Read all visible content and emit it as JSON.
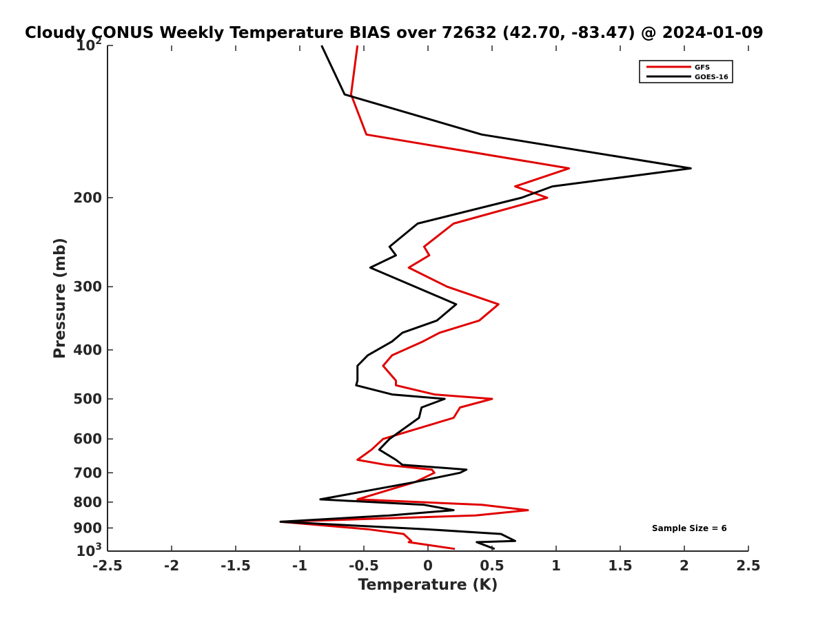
{
  "chart_data": {
    "type": "line",
    "title": "Cloudy CONUS Weekly Temperature BIAS over 72632 (42.70, -83.47) @ 2024-01-09",
    "xlabel": "Temperature (K)",
    "ylabel": "Pressure (mb)",
    "xlim": [
      -2.5,
      2.5
    ],
    "ylim": [
      100,
      1000
    ],
    "y_scale": "log",
    "y_reversed": true,
    "x_ticks": [
      -2.5,
      -2,
      -1.5,
      -1,
      -0.5,
      0,
      0.5,
      1,
      1.5,
      2,
      2.5
    ],
    "x_tick_labels": [
      "-2.5",
      "-2",
      "-1.5",
      "-1",
      "-0.5",
      "0",
      "0.5",
      "1",
      "1.5",
      "2",
      "2.5"
    ],
    "y_ticks": [
      100,
      200,
      300,
      400,
      500,
      600,
      700,
      800,
      900,
      1000
    ],
    "y_tick_labels": [
      {
        "base": "10",
        "exp": "2"
      },
      {
        "base": "200",
        "exp": ""
      },
      {
        "base": "300",
        "exp": ""
      },
      {
        "base": "400",
        "exp": ""
      },
      {
        "base": "500",
        "exp": ""
      },
      {
        "base": "600",
        "exp": ""
      },
      {
        "base": "700",
        "exp": ""
      },
      {
        "base": "800",
        "exp": ""
      },
      {
        "base": "900",
        "exp": ""
      },
      {
        "base": "10",
        "exp": "3"
      }
    ],
    "grid": false,
    "legend_position": "top-right",
    "series": [
      {
        "name": "GFS",
        "color": "#e00000",
        "points": [
          [
            -0.55,
            100
          ],
          [
            -0.6,
            125
          ],
          [
            -0.48,
            150
          ],
          [
            1.1,
            175
          ],
          [
            0.68,
            190
          ],
          [
            0.93,
            200
          ],
          [
            0.2,
            225
          ],
          [
            -0.03,
            250
          ],
          [
            0.01,
            260
          ],
          [
            -0.15,
            275
          ],
          [
            0.15,
            300
          ],
          [
            0.55,
            325
          ],
          [
            0.4,
            350
          ],
          [
            0.09,
            370
          ],
          [
            -0.04,
            385
          ],
          [
            -0.28,
            410
          ],
          [
            -0.35,
            430
          ],
          [
            -0.25,
            460
          ],
          [
            -0.25,
            470
          ],
          [
            0.05,
            490
          ],
          [
            0.5,
            500
          ],
          [
            0.25,
            520
          ],
          [
            0.2,
            545
          ],
          [
            -0.35,
            600
          ],
          [
            -0.44,
            630
          ],
          [
            -0.55,
            660
          ],
          [
            -0.33,
            675
          ],
          [
            0.03,
            690
          ],
          [
            0.05,
            700
          ],
          [
            -0.1,
            730
          ],
          [
            -0.55,
            790
          ],
          [
            0.42,
            810
          ],
          [
            0.78,
            830
          ],
          [
            0.37,
            850
          ],
          [
            -1.15,
            875
          ],
          [
            -0.47,
            905
          ],
          [
            -0.19,
            925
          ],
          [
            -0.13,
            955
          ],
          [
            -0.15,
            960
          ],
          [
            0.21,
            990
          ]
        ]
      },
      {
        "name": "GOES-16",
        "color": "#000000",
        "points": [
          [
            -0.83,
            100
          ],
          [
            -0.65,
            125
          ],
          [
            0.42,
            150
          ],
          [
            2.05,
            175
          ],
          [
            0.97,
            190
          ],
          [
            0.73,
            200
          ],
          [
            -0.08,
            225
          ],
          [
            -0.3,
            250
          ],
          [
            -0.25,
            260
          ],
          [
            -0.45,
            275
          ],
          [
            -0.1,
            300
          ],
          [
            0.22,
            325
          ],
          [
            0.07,
            350
          ],
          [
            -0.2,
            370
          ],
          [
            -0.28,
            385
          ],
          [
            -0.47,
            410
          ],
          [
            -0.55,
            430
          ],
          [
            -0.55,
            460
          ],
          [
            -0.56,
            470
          ],
          [
            -0.28,
            490
          ],
          [
            0.13,
            500
          ],
          [
            -0.05,
            520
          ],
          [
            -0.07,
            545
          ],
          [
            -0.3,
            600
          ],
          [
            -0.38,
            630
          ],
          [
            -0.25,
            660
          ],
          [
            -0.2,
            675
          ],
          [
            0.3,
            690
          ],
          [
            0.25,
            700
          ],
          [
            -0.1,
            730
          ],
          [
            -0.84,
            790
          ],
          [
            -0.03,
            810
          ],
          [
            0.2,
            830
          ],
          [
            -0.3,
            850
          ],
          [
            -1.15,
            875
          ],
          [
            -0.02,
            905
          ],
          [
            0.57,
            925
          ],
          [
            0.68,
            955
          ],
          [
            0.38,
            960
          ],
          [
            0.52,
            990
          ]
        ]
      }
    ],
    "annotation": "Sample Size = 6"
  }
}
